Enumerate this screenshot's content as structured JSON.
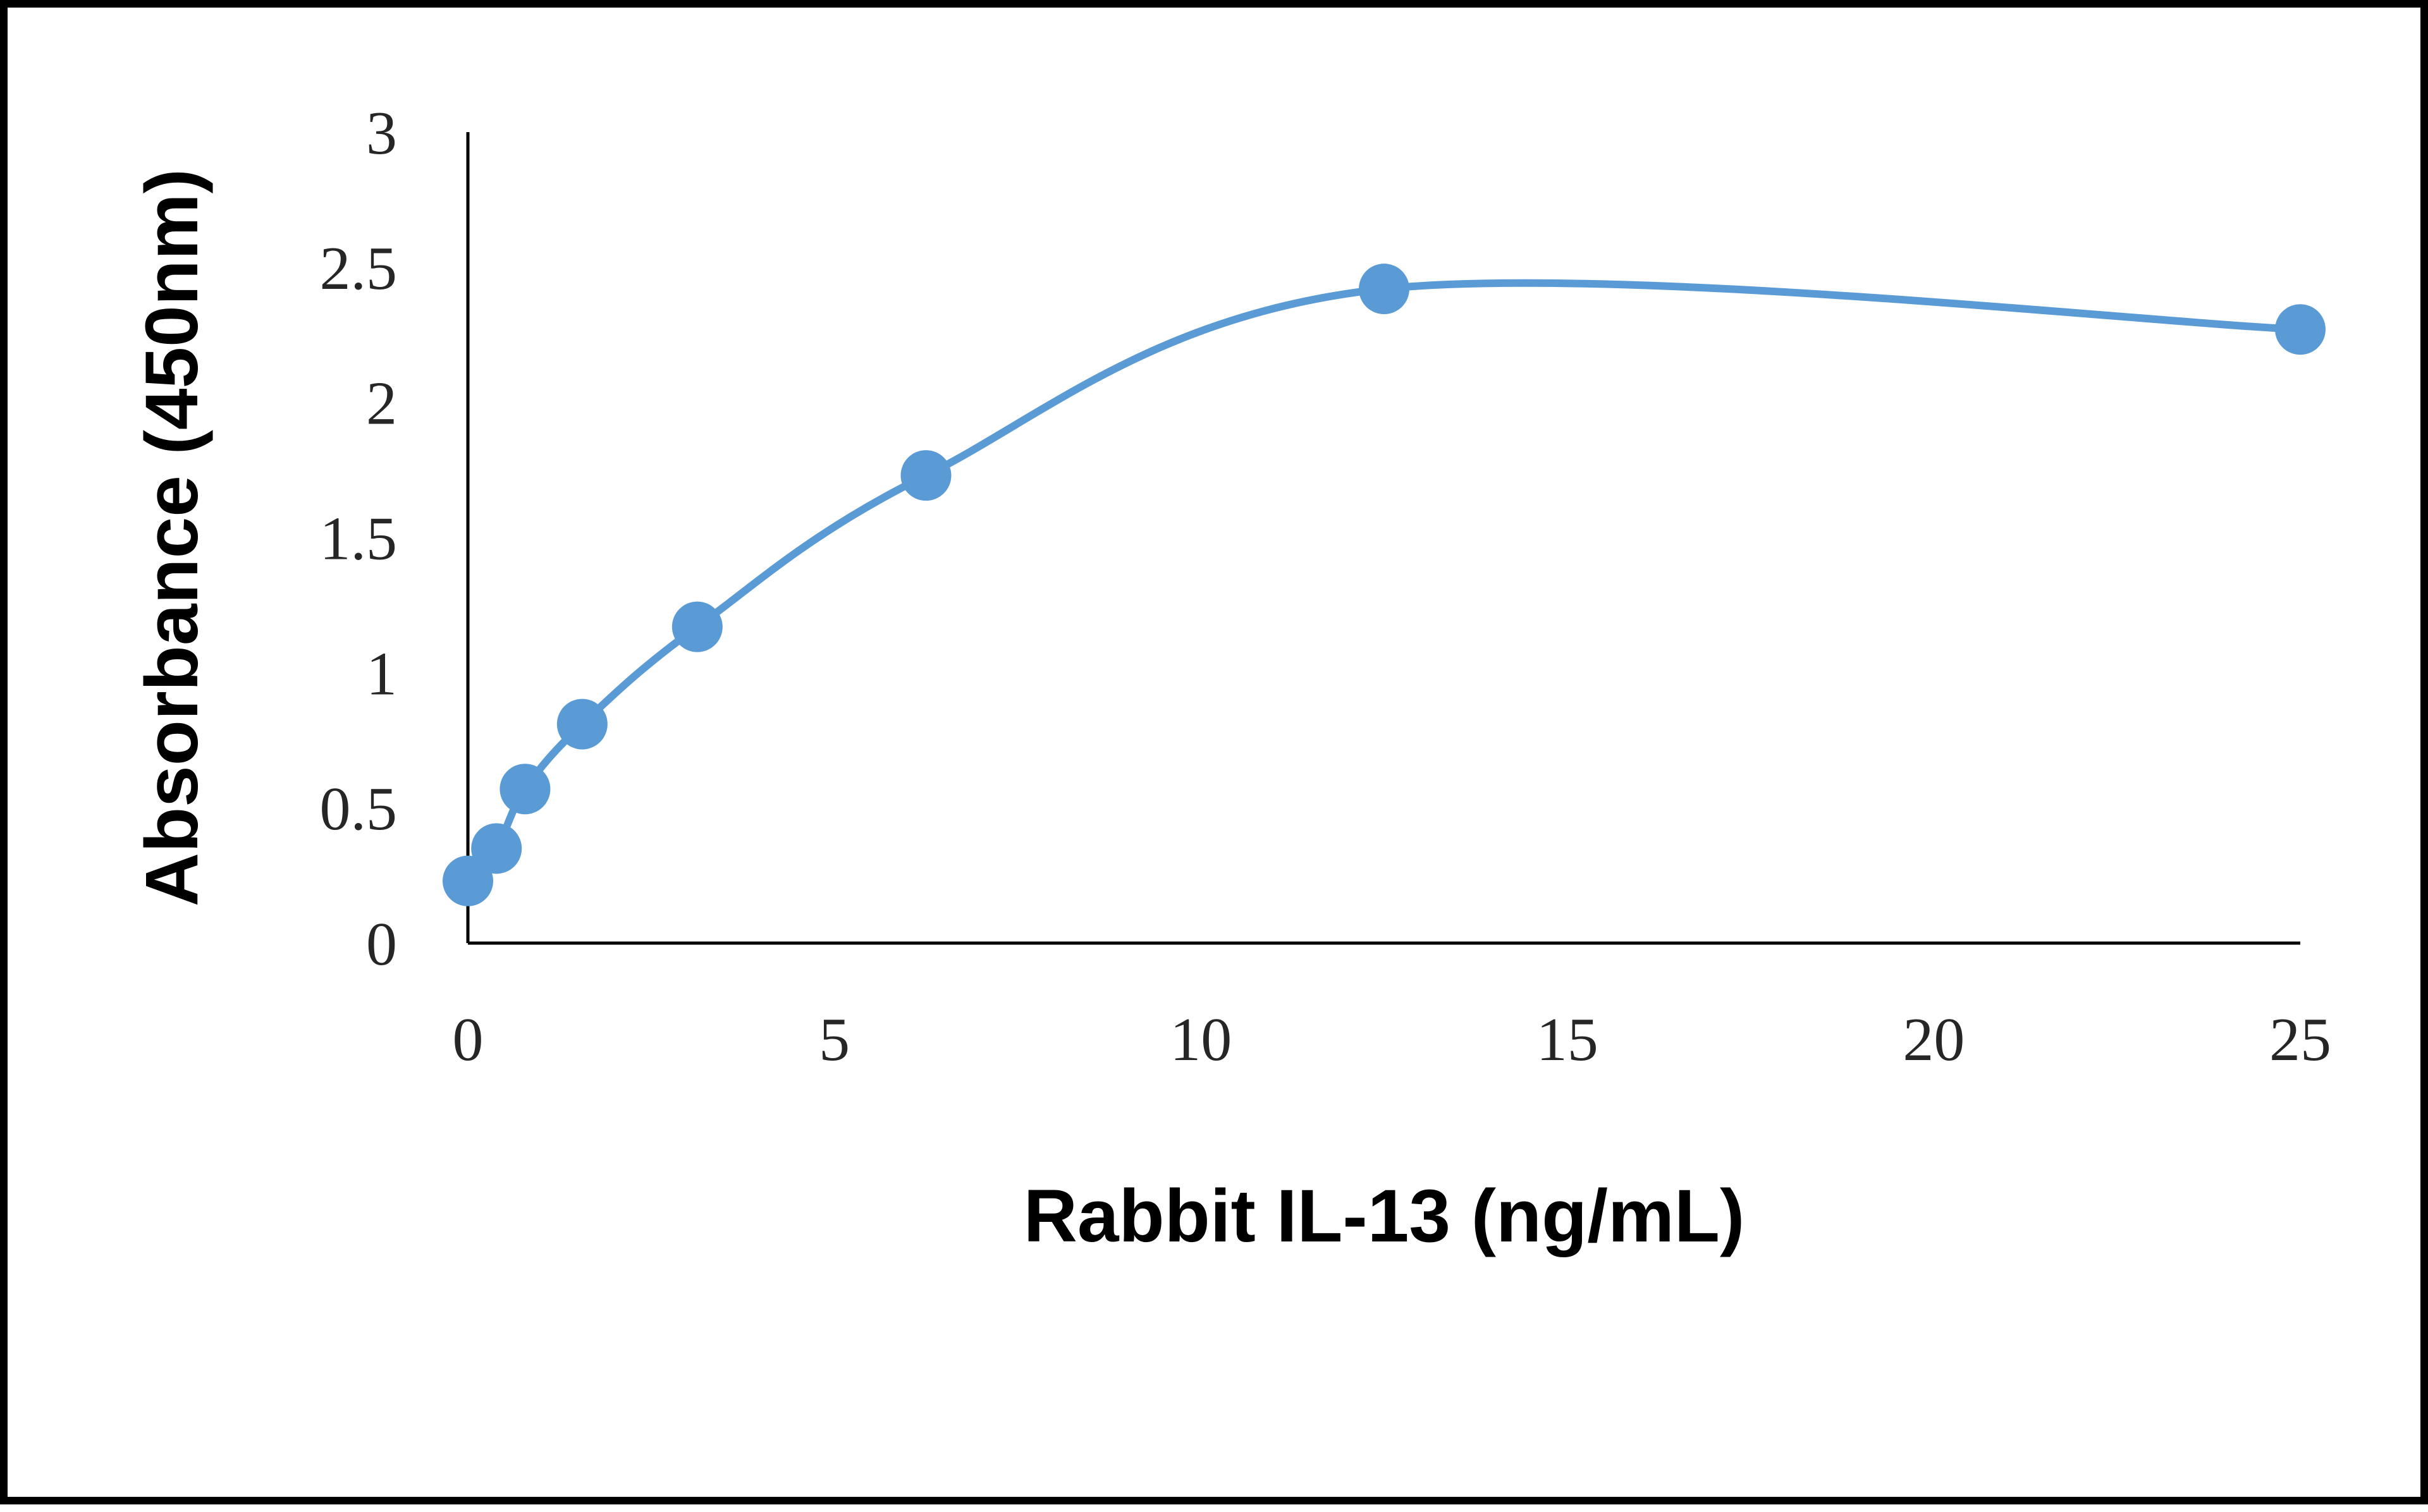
{
  "chart_data": {
    "type": "scatter",
    "title": "",
    "xlabel": "Rabbit IL-13 (ng/mL)",
    "ylabel": "Absorbance (450nm)",
    "xlim": [
      0,
      25
    ],
    "ylim": [
      0,
      3
    ],
    "x_ticks": [
      "0",
      "5",
      "10",
      "15",
      "20",
      "25"
    ],
    "y_ticks": [
      "0",
      "0.5",
      "1",
      "1.5",
      "2",
      "2.5",
      "3"
    ],
    "grid": false,
    "legend": "none",
    "line_style": "smooth",
    "series_color": "#5b9bd5",
    "series": [
      {
        "x": [
          0,
          0.39,
          0.78,
          1.56,
          3.13,
          6.25,
          12.5,
          25
        ],
        "y": [
          0.23,
          0.35,
          0.57,
          0.81,
          1.17,
          1.73,
          2.42,
          2.27
        ]
      }
    ]
  }
}
